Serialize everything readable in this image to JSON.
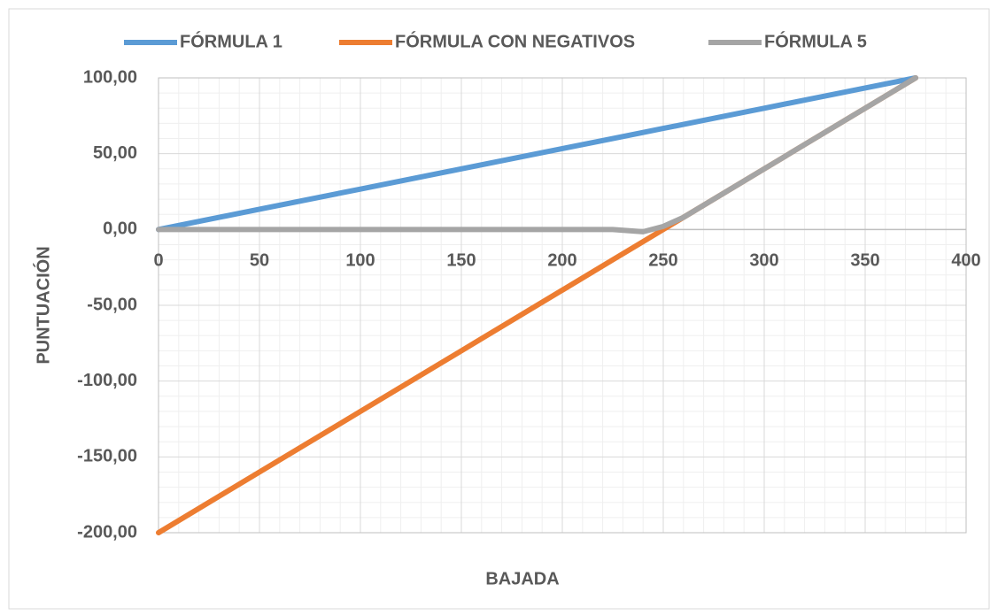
{
  "chart_data": {
    "type": "line",
    "xlabel": "BAJADA",
    "ylabel": "PUNTUACIÓN",
    "x": [
      0,
      50,
      100,
      150,
      200,
      225,
      240,
      250,
      260,
      300,
      350,
      375
    ],
    "series": [
      {
        "name": "FÓRMULA 1",
        "color": "#5b9bd5",
        "values": [
          0,
          13.33,
          26.67,
          40,
          53.33,
          60,
          64,
          66.67,
          69.33,
          80,
          93.33,
          100
        ]
      },
      {
        "name": "FÓRMULA CON NEGATIVOS",
        "color": "#ed7d31",
        "values": [
          -200,
          -160,
          -120,
          -80,
          -40,
          -20,
          -8,
          0,
          8,
          40,
          80,
          100
        ]
      },
      {
        "name": "FÓRMULA 5",
        "color": "#a5a5a5",
        "values": [
          0,
          0,
          0,
          0,
          0,
          0,
          -1.5,
          2,
          8,
          40,
          80,
          100
        ]
      }
    ],
    "xlim": [
      0,
      400
    ],
    "xticks": [
      0,
      50,
      100,
      150,
      200,
      250,
      300,
      350,
      400
    ],
    "ylim": [
      -200,
      100
    ],
    "yticks": [
      {
        "value": -200,
        "label": "-200,00"
      },
      {
        "value": -150,
        "label": "-150,00"
      },
      {
        "value": -100,
        "label": "-100,00"
      },
      {
        "value": -50,
        "label": "-50,00"
      },
      {
        "value": 0,
        "label": "0,00"
      },
      {
        "value": 50,
        "label": "50,00"
      },
      {
        "value": 100,
        "label": "100,00"
      }
    ],
    "grid": true,
    "legend": "top"
  }
}
